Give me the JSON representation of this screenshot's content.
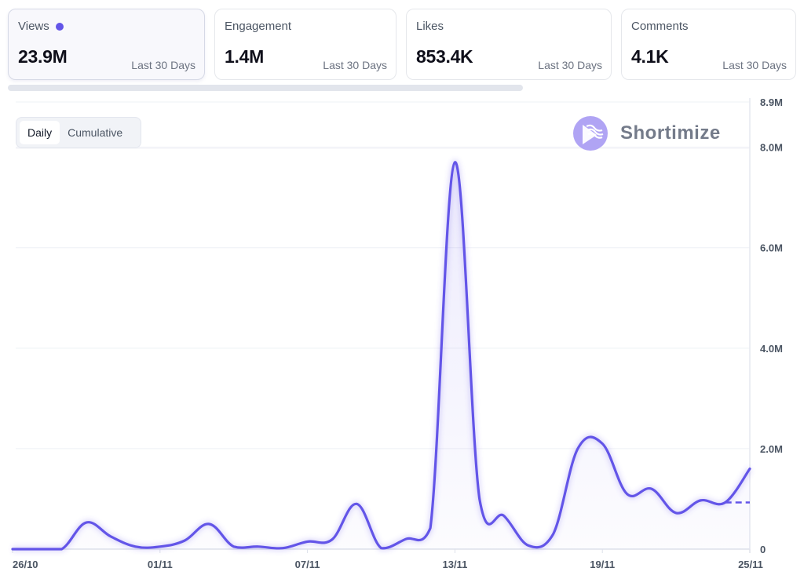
{
  "cards": [
    {
      "label": "Views",
      "value": "23.9M",
      "period": "Last 30 Days",
      "active": true
    },
    {
      "label": "Engagement",
      "value": "1.4M",
      "period": "Last 30 Days",
      "active": false
    },
    {
      "label": "Likes",
      "value": "853.4K",
      "period": "Last 30 Days",
      "active": false
    },
    {
      "label": "Comments",
      "value": "4.1K",
      "period": "Last 30 Days",
      "active": false
    }
  ],
  "toggle": {
    "options": [
      "Daily",
      "Cumulative"
    ],
    "selected": "Daily"
  },
  "brand": {
    "name": "Shortimize",
    "icon": "play-waves-logo-icon"
  },
  "colors": {
    "accent": "#6355e8",
    "grid": "#eef0f5",
    "axis": "#dde1ea",
    "text": "#4b5563"
  },
  "chart_data": {
    "type": "area",
    "title": "",
    "series": [
      {
        "name": "Views",
        "values": [
          0,
          0,
          0,
          0.53,
          0.25,
          0.05,
          0.05,
          0.17,
          0.5,
          0.05,
          0.05,
          0.02,
          0.15,
          0.19,
          0.9,
          0.02,
          0.2,
          0.42,
          7.7,
          1.0,
          0.66,
          0.07,
          0.3,
          2.0,
          2.1,
          1.1,
          1.2,
          0.72,
          0.97,
          0.93,
          1.6
        ],
        "projection": {
          "from_index": 29,
          "to_index": 30,
          "value": 0.93,
          "style": "dashed"
        }
      }
    ],
    "x_count": 31,
    "x_ticks": [
      {
        "index": 0,
        "label": "26/10"
      },
      {
        "index": 6,
        "label": "01/11"
      },
      {
        "index": 12,
        "label": "07/11"
      },
      {
        "index": 18,
        "label": "13/11"
      },
      {
        "index": 24,
        "label": "19/11"
      },
      {
        "index": 30,
        "label": "25/11"
      }
    ],
    "y_unit": "M",
    "ylim": [
      0,
      8.9
    ],
    "y_ticks": [
      {
        "value": 0,
        "label": "0"
      },
      {
        "value": 2,
        "label": "2.0M"
      },
      {
        "value": 4,
        "label": "4.0M"
      },
      {
        "value": 6,
        "label": "6.0M"
      },
      {
        "value": 8,
        "label": "8.0M"
      },
      {
        "value": 8.9,
        "label": "8.9M"
      }
    ],
    "y_axis_position": "right",
    "grid": true,
    "xlabel": "",
    "ylabel": ""
  }
}
